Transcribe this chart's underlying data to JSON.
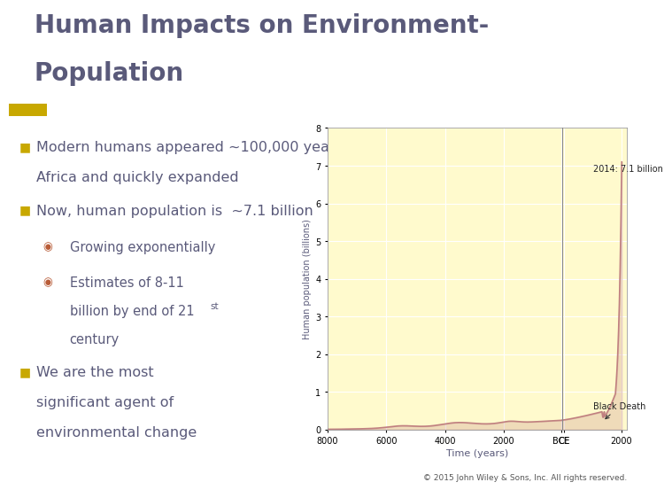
{
  "title_line1": "Human Impacts on Environment-",
  "title_line2": "Population",
  "title_color": "#5a5a7a",
  "title_fontsize": 20,
  "header_bar_color": "#b85c38",
  "header_bar_left_color": "#c8a800",
  "bg_color": "#ffffff",
  "bullet_color": "#5a5a7a",
  "bullet_marker_color": "#c8a800",
  "sub_bullet_color": "#b85c38",
  "footer": "© 2015 John Wiley & Sons, Inc. All rights reserved.",
  "chart_bg": "#fffacd",
  "chart_ylabel": "Human population (billions)",
  "chart_xlabel": "Time (years)",
  "chart_line_color": "#c08080",
  "annotation1_text": "2014: 7.1 billion",
  "annotation2_text": "Black Death",
  "xlim_left": -8000,
  "xlim_right": 2200,
  "ylim_top": 8,
  "ytick_vals": [
    0,
    1,
    2,
    3,
    4,
    5,
    6,
    7,
    8
  ]
}
